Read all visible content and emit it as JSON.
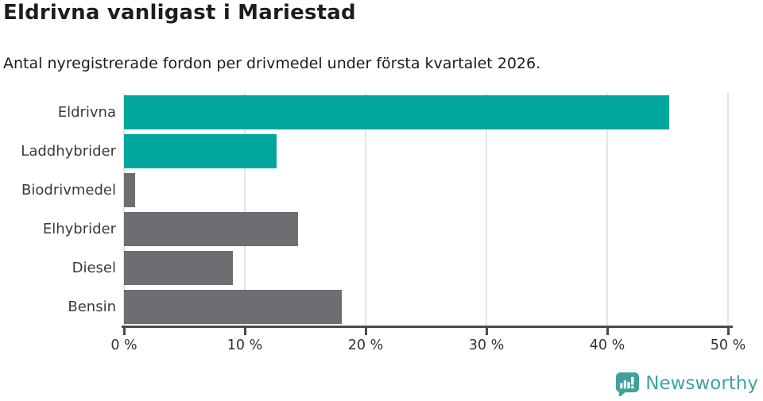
{
  "header": {
    "title": "Eldrivna vanligast i Mariestad",
    "subtitle": "Antal nyregistrerade fordon per drivmedel under första kvartalet 2026."
  },
  "chart_data": {
    "type": "bar",
    "orientation": "horizontal",
    "title": "Eldrivna vanligast i Mariestad",
    "subtitle": "Antal nyregistrerade fordon per drivmedel under första kvartalet 2026.",
    "categories": [
      "Eldrivna",
      "Laddhybrider",
      "Biodrivmedel",
      "Elhybrider",
      "Diesel",
      "Bensin"
    ],
    "values": [
      45.1,
      12.6,
      0.9,
      14.4,
      9.0,
      18.0
    ],
    "bar_colors": [
      "#00a59b",
      "#00a59b",
      "#6e6d72",
      "#6e6d72",
      "#6e6d72",
      "#6e6d72"
    ],
    "accent_color": "#00a59b",
    "neutral_color": "#6e6d72",
    "xlim": [
      0,
      50
    ],
    "x_ticks": [
      0,
      10,
      20,
      30,
      40,
      50
    ],
    "x_tick_labels": [
      "0 %",
      "10 %",
      "20 %",
      "30 %",
      "40 %",
      "50 %"
    ],
    "grid": "vertical",
    "gridline_color": "#e4e4e4",
    "axis_color": "#4b4b4b",
    "legend": "none"
  },
  "footer": {
    "brand": "Newsworthy",
    "brand_color": "#3fa39b",
    "logo_icon": "newsworthy-speech-bubble-chart-icon"
  }
}
